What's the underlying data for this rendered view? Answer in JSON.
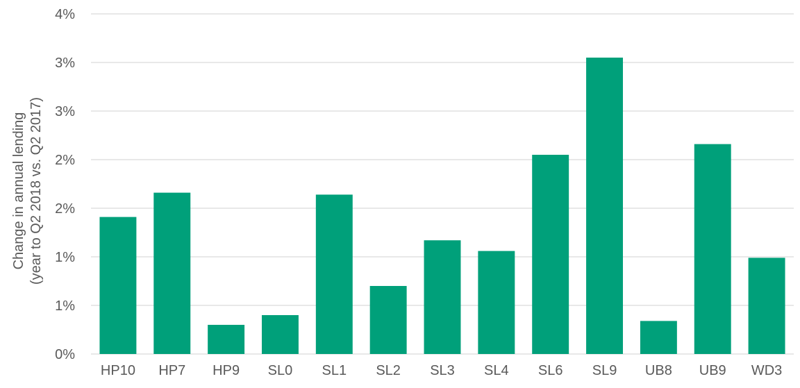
{
  "chart_data": {
    "type": "bar",
    "title": "",
    "xlabel": "",
    "ylabel_lines": [
      "Change in annual lending",
      "(year to Q2 2018 vs. Q2 2017)"
    ],
    "categories": [
      "HP10",
      "HP7",
      "HP9",
      "SL0",
      "SL1",
      "SL2",
      "SL3",
      "SL4",
      "SL6",
      "SL9",
      "UB8",
      "UB9",
      "WD3"
    ],
    "values": [
      1.41,
      1.66,
      0.3,
      0.4,
      1.64,
      0.7,
      1.17,
      1.06,
      2.05,
      3.05,
      0.34,
      2.16,
      0.99
    ],
    "y_ticks": [
      0,
      0.5,
      1,
      1.5,
      2,
      2.5,
      3,
      3.5
    ],
    "y_tick_labels": [
      "0%",
      "1%",
      "1%",
      "2%",
      "2%",
      "3%",
      "3%",
      "4%"
    ],
    "ylim": [
      0,
      3.5
    ],
    "grid": true,
    "bar_color": "#00A07A",
    "grid_color": "#D9D9D9"
  }
}
